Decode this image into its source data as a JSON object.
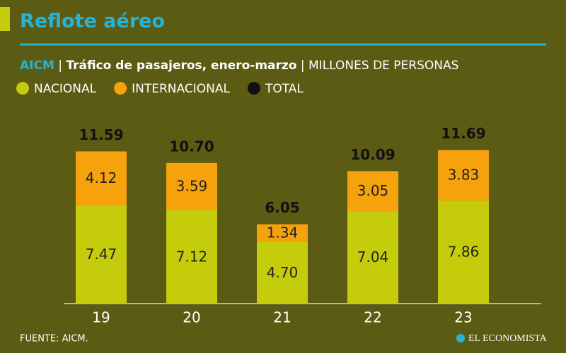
{
  "chart_data": {
    "type": "stacked_bar",
    "title": "Reflote aéreo",
    "subtitle_parts": [
      "AICM",
      "|",
      "Tráfico de pasajeros, enero-marzo",
      "|",
      "MILLONES DE PERSONAS"
    ],
    "categories": [
      "19",
      "20",
      "21",
      "22",
      "23"
    ],
    "series": [
      {
        "name": "NACIONAL",
        "color": "#c4cc0b",
        "values": [
          7.47,
          7.12,
          4.7,
          7.04,
          7.86
        ],
        "value_labels": [
          "7.47",
          "7.12",
          "4.70",
          "7.04",
          "7.86"
        ]
      },
      {
        "name": "INTERNACIONAL",
        "color": "#f5a20c",
        "values": [
          4.12,
          3.59,
          1.34,
          3.05,
          3.83
        ],
        "value_labels": [
          "4.12",
          "3.59",
          "1.34",
          "3.05",
          "3.83"
        ]
      },
      {
        "name": "TOTAL",
        "color": "#111111",
        "values": [
          11.59,
          10.7,
          6.05,
          10.09,
          11.69
        ],
        "value_labels": [
          "11.59",
          "10.70",
          "6.05",
          "10.09",
          "11.69"
        ]
      }
    ],
    "source": "FUENTE: AICM.",
    "brand": "EL ECONOMISTA"
  }
}
